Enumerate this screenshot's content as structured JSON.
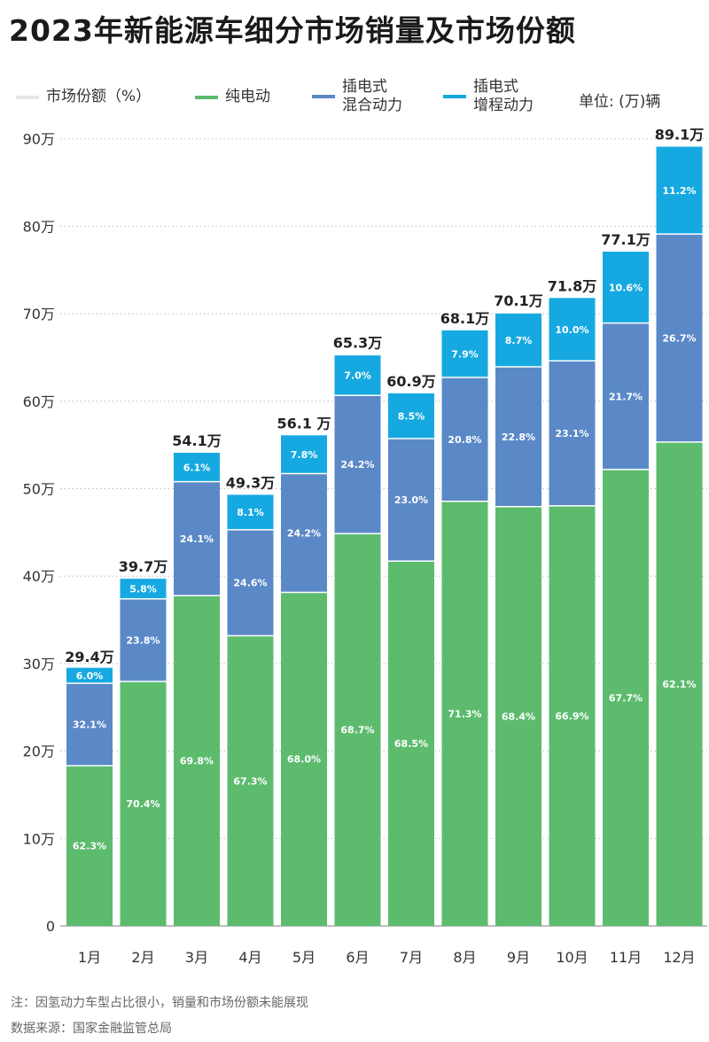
{
  "title": "2023年新能源车细分市场销量及市场份额",
  "legend": {
    "share": "市场份额（%）",
    "bev": "纯电动",
    "phev_1": "插电式",
    "phev_2": "混合动力",
    "erev_1": "插电式",
    "erev_2": "增程动力",
    "unit": "单位: (万)辆"
  },
  "footnotes": {
    "note": "注：因氢动力车型占比很小，销量和市场份额未能展现",
    "source": "数据来源：国家金融监管总局"
  },
  "colors": {
    "bev": "#5dbb6e",
    "phev": "#5b89c7",
    "erev": "#16a9e1",
    "share": "#e6e6e6"
  },
  "chart_data": {
    "type": "bar",
    "stacked": true,
    "categories": [
      "1月",
      "2月",
      "3月",
      "4月",
      "5月",
      "6月",
      "7月",
      "8月",
      "9月",
      "10月",
      "11月",
      "12月"
    ],
    "series": [
      {
        "name": "纯电动",
        "share_pct": [
          62.3,
          70.4,
          69.8,
          67.3,
          68.0,
          68.7,
          68.5,
          71.3,
          68.4,
          66.9,
          67.7,
          62.1
        ]
      },
      {
        "name": "插电式混合动力",
        "share_pct": [
          32.1,
          23.8,
          24.1,
          24.6,
          24.2,
          24.2,
          23.0,
          20.8,
          22.8,
          23.1,
          21.7,
          26.7
        ]
      },
      {
        "name": "插电式增程动力",
        "share_pct": [
          6.0,
          5.8,
          6.1,
          8.1,
          7.8,
          7.0,
          8.5,
          7.9,
          8.7,
          10.0,
          10.6,
          11.2
        ]
      }
    ],
    "totals": [
      29.4,
      39.7,
      54.1,
      49.3,
      56.1,
      65.3,
      60.9,
      68.1,
      70.1,
      71.8,
      77.1,
      89.1
    ],
    "total_labels": [
      "29.4万",
      "39.7万",
      "54.1万",
      "49.3万",
      "56.1 万",
      "65.3万",
      "60.9万",
      "68.1万",
      "70.1万",
      "71.8万",
      "77.1万",
      "89.1万"
    ],
    "y_ticks": [
      "0",
      "10万",
      "20万",
      "30万",
      "40万",
      "50万",
      "60万",
      "70万",
      "80万",
      "90万"
    ],
    "ylim": [
      0,
      90
    ],
    "grid": true,
    "legend_position": "top"
  }
}
